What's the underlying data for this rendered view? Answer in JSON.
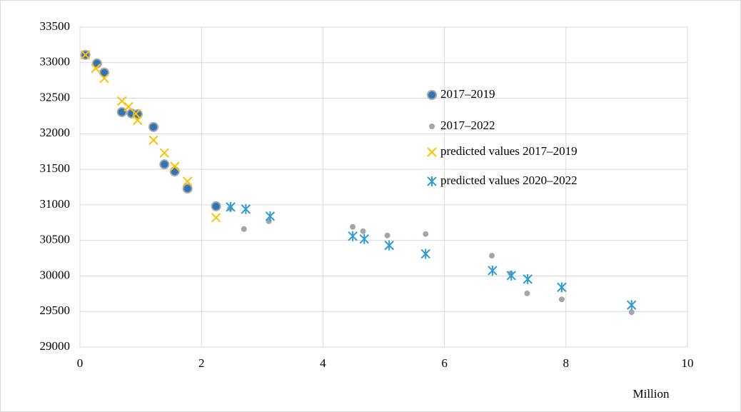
{
  "chart_data": {
    "type": "scatter",
    "x_label": "Million",
    "xlim": [
      0,
      10
    ],
    "xticks": [
      0,
      2,
      4,
      6,
      8,
      10
    ],
    "ylim": [
      29000,
      33500
    ],
    "yticks": [
      29000,
      29500,
      30000,
      30500,
      31000,
      31500,
      32000,
      32500,
      33000,
      33500
    ],
    "grid": true,
    "legend": "right",
    "series": [
      {
        "name": "2017–2022",
        "color": "#a5a5a5",
        "marker": "dot",
        "x": [
          0.09,
          0.28,
          0.4,
          0.69,
          0.85,
          0.95,
          1.21,
          1.39,
          1.56,
          1.77,
          2.24,
          2.47,
          2.7,
          3.11,
          4.49,
          4.66,
          5.06,
          5.69,
          6.78,
          7.09,
          7.36,
          7.93,
          9.08
        ],
        "values": [
          33110,
          32990,
          32860,
          32305,
          32285,
          32275,
          32095,
          31570,
          31470,
          31230,
          30980,
          30950,
          30660,
          30770,
          30690,
          30630,
          30570,
          30590,
          30285,
          30035,
          29755,
          29670,
          29490
        ]
      },
      {
        "name": "2017–2019",
        "color": "#2e75b6",
        "marker": "circle",
        "x": [
          0.09,
          0.28,
          0.4,
          0.69,
          0.85,
          0.95,
          1.21,
          1.39,
          1.56,
          1.77,
          2.24
        ],
        "values": [
          33110,
          32990,
          32860,
          32305,
          32285,
          32275,
          32095,
          31570,
          31470,
          31230,
          30980
        ]
      },
      {
        "name": "predicted values 2017–2019",
        "color": "#ffc000",
        "marker": "x",
        "x": [
          0.09,
          0.26,
          0.4,
          0.69,
          0.8,
          0.92,
          0.95,
          1.21,
          1.39,
          1.56,
          1.77,
          2.24
        ],
        "values": [
          33110,
          32920,
          32780,
          32460,
          32380,
          32280,
          32190,
          31910,
          31730,
          31540,
          31330,
          30820
        ]
      },
      {
        "name": "predicted values 2020–2022",
        "color": "#2e9bd6",
        "marker": "star",
        "x": [
          2.48,
          2.73,
          3.13,
          4.49,
          4.68,
          5.09,
          5.69,
          6.79,
          7.1,
          7.37,
          7.93,
          9.08
        ],
        "values": [
          30970,
          30940,
          30840,
          30560,
          30520,
          30430,
          30310,
          30075,
          30005,
          29955,
          29840,
          29590
        ]
      }
    ],
    "legend_order": [
      1,
      0,
      2,
      3
    ]
  }
}
